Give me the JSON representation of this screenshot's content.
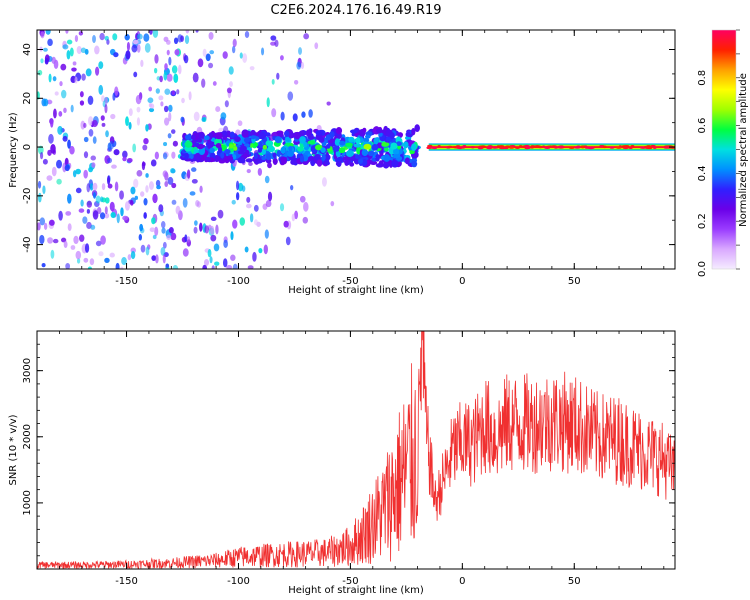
{
  "title": "C2E6.2024.176.16.49.R19",
  "chart_data": [
    {
      "type": "heatmap",
      "xlabel": "Height of straight line (km)",
      "ylabel": "Frequency (Hz)",
      "xlim": [
        -190,
        95
      ],
      "ylim": [
        -50,
        48
      ],
      "xticks": [
        "-150",
        "-100",
        "-50",
        "0",
        "50"
      ],
      "yticks": [
        "-40",
        "-20",
        "0",
        "20",
        "40"
      ],
      "grid": false,
      "colorbar": {
        "label": "Normalized spectral amplitude",
        "range": [
          0,
          1
        ],
        "ticks": [
          "0.0",
          "0.2",
          "0.4",
          "0.6",
          "0.8"
        ],
        "colormap": [
          "#f5ecff",
          "#d9a8ff",
          "#9a3cff",
          "#6a00e8",
          "#3020ff",
          "#0090ff",
          "#00e0e0",
          "#00ff40",
          "#a0ff00",
          "#ffff00",
          "#ffa000",
          "#ff2000",
          "#ff0060"
        ]
      },
      "regions": [
        {
          "x": [
            -190,
            -125
          ],
          "description": "scattered noise",
          "level": 0.15
        },
        {
          "x": [
            -125,
            -20
          ],
          "description": "broad echo band",
          "freq_halfwidth": 5,
          "level": 0.45
        },
        {
          "x": [
            -15,
            95
          ],
          "description": "narrow strong echo near 0 Hz",
          "freq_halfwidth": 1.5,
          "level": 0.95
        }
      ]
    },
    {
      "type": "line",
      "xlabel": "Height of straight line (km)",
      "ylabel": "SNR (10 * v/v)",
      "xlim": [
        -190,
        95
      ],
      "ylim": [
        0,
        3600
      ],
      "xticks": [
        "-150",
        "-100",
        "-50",
        "0",
        "50"
      ],
      "yticks": [
        "1000",
        "2000",
        "3000"
      ],
      "grid": false,
      "color": "#f03030",
      "series": [
        {
          "x": [
            -190,
            -170,
            -150,
            -130,
            -110,
            -100,
            -90,
            -80,
            -70,
            -60,
            -50,
            -45,
            -40,
            -35,
            -30,
            -25,
            -20,
            -18,
            -16,
            -12,
            -8,
            -4,
            0,
            5,
            10,
            15,
            20,
            30,
            40,
            50,
            60,
            70,
            80,
            90,
            95
          ],
          "values": [
            60,
            60,
            70,
            90,
            130,
            180,
            200,
            220,
            230,
            250,
            350,
            500,
            700,
            900,
            1200,
            1500,
            1800,
            3500,
            2000,
            1000,
            1400,
            1800,
            1900,
            1900,
            2200,
            2000,
            2200,
            2200,
            2250,
            2200,
            2000,
            1950,
            1800,
            1650,
            1450
          ]
        }
      ]
    }
  ]
}
